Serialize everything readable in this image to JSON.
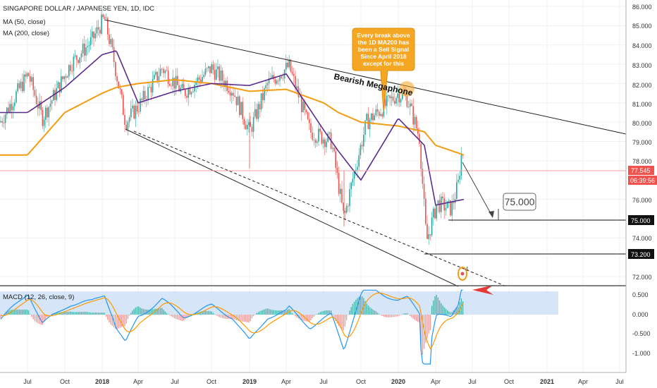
{
  "header": {
    "symbol_line": "SINGAPORE DOLLAR / JAPANESE YEN, 1D, IDC",
    "ma50_label": "MA (50, close)",
    "ma200_label": "MA (200, close)",
    "macd_label": "MACD (12, 26, close, 9)"
  },
  "price_axis": {
    "ticks": [
      "86.000",
      "85.000",
      "84.000",
      "83.000",
      "82.000",
      "81.000",
      "80.000",
      "79.000",
      "78.000",
      "76.000",
      "74.000",
      "72.000"
    ],
    "current_price": "77.545",
    "countdown": "06:39:56",
    "level_75": "75.000",
    "level_73": "73.200"
  },
  "macd_axis": {
    "ticks": [
      "0.500",
      "0.000",
      "-0.500",
      "-1.000"
    ]
  },
  "time_axis": {
    "ticks": [
      "Jul",
      "Oct",
      "2018",
      "Apr",
      "Jul",
      "Oct",
      "2019",
      "Apr",
      "Jul",
      "Oct",
      "2020",
      "Apr",
      "Jul",
      "Oct",
      "2021",
      "Apr",
      "Jul"
    ]
  },
  "annotations": {
    "callout_line1": "Every break above",
    "callout_line2": "the 1D MA200 has",
    "callout_line3": "been a Sell Signal",
    "callout_line4": "Since April 2018",
    "callout_line5": "except for this",
    "megaphone_label": "Bearish Megaphone",
    "target_label": "75.000",
    "marker_number": "4"
  },
  "colors": {
    "up_candle": "#26a69a",
    "down_candle": "#ef5350",
    "ma50": "#5b2c8f",
    "ma200": "#f39c12",
    "macd_line": "#2196f3",
    "signal_line": "#ff9800",
    "callout": "#f5a623",
    "macd_zone": "#cfe0f7"
  },
  "chart_data": {
    "type": "line",
    "title": "SINGAPORE DOLLAR / JAPANESE YEN, 1D, IDC",
    "x": [
      "2017-07",
      "2017-10",
      "2018-01",
      "2018-02",
      "2018-04",
      "2018-07",
      "2018-10",
      "2019-01",
      "2019-04",
      "2019-07",
      "2019-08",
      "2019-10",
      "2020-01",
      "2020-03",
      "2020-04",
      "2020-06"
    ],
    "series": [
      {
        "name": "MA (50, close)",
        "values": [
          80.5,
          81.8,
          83.5,
          83.7,
          81.0,
          81.6,
          82.0,
          81.9,
          82.5,
          79.6,
          78.5,
          77.0,
          80.2,
          78.8,
          75.7,
          76.0
        ]
      },
      {
        "name": "MA (200, close)",
        "values": [
          78.3,
          80.5,
          81.5,
          81.8,
          82.0,
          82.2,
          82.0,
          81.6,
          81.7,
          81.0,
          80.5,
          80.0,
          79.8,
          79.5,
          78.8,
          78.3
        ]
      }
    ],
    "ylim": [
      71.5,
      86.3
    ],
    "current_price": 77.545,
    "levels": [
      75.0,
      73.2
    ],
    "macd_ylim": [
      -1.35,
      0.75
    ]
  }
}
